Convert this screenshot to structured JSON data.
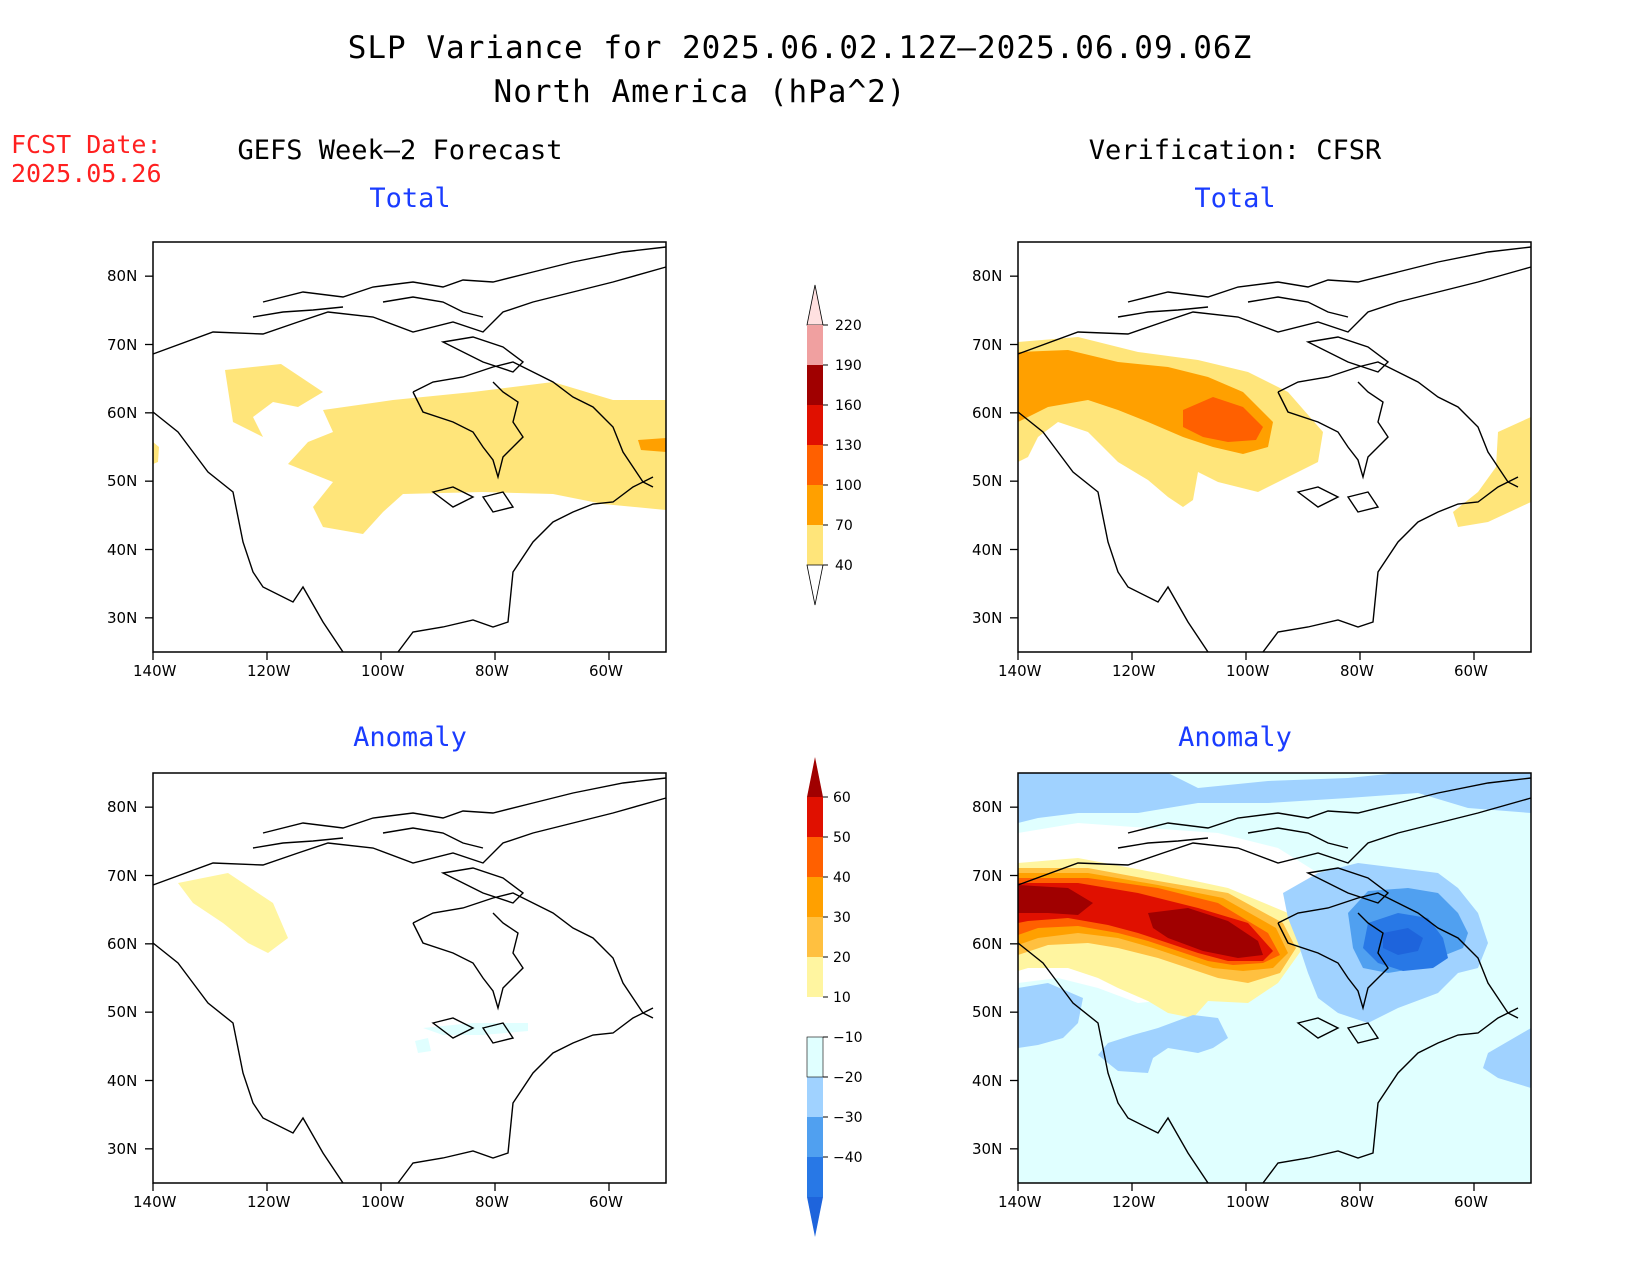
{
  "title": {
    "line1": "SLP Variance for 2025.06.02.12Z–2025.06.09.06Z",
    "line2": "North America (hPa^2)"
  },
  "fcst": {
    "label": "FCST Date:",
    "date": "2025.05.26"
  },
  "columns": {
    "left": "GEFS Week–2 Forecast",
    "right": "Verification: CFSR"
  },
  "panels": [
    {
      "id": "gefs-total",
      "subtitle": "Total"
    },
    {
      "id": "cfsr-total",
      "subtitle": "Total"
    },
    {
      "id": "gefs-anomaly",
      "subtitle": "Anomaly"
    },
    {
      "id": "cfsr-anomaly",
      "subtitle": "Anomaly"
    }
  ],
  "axes": {
    "lat_ticks": [
      "80N",
      "70N",
      "60N",
      "50N",
      "40N",
      "30N"
    ],
    "lon_ticks": [
      "140W",
      "120W",
      "100W",
      "80W",
      "60W"
    ],
    "lat_values": [
      80,
      70,
      60,
      50,
      40,
      30
    ],
    "lon_values": [
      -140,
      -120,
      -100,
      -80,
      -60
    ],
    "lat_range": [
      25,
      85
    ],
    "lon_range": [
      -140,
      -50
    ]
  },
  "colorbars": {
    "total": {
      "levels": [
        "40",
        "70",
        "100",
        "130",
        "160",
        "190",
        "220"
      ],
      "colors": [
        "#ffe57a",
        "#ffa000",
        "#ff6000",
        "#e01000",
        "#a00000",
        "#f0a0a0",
        "#ffe0e0"
      ]
    },
    "anomaly": {
      "levels": [
        "60",
        "50",
        "40",
        "30",
        "20",
        "10",
        "−10",
        "−20",
        "−30",
        "−40"
      ],
      "colors": [
        "#a00000",
        "#e01000",
        "#ff6000",
        "#ffa000",
        "#ffc040",
        "#fff5a0",
        "#ffffff",
        "#e0ffff",
        "#a0d2ff",
        "#50a0f0",
        "#2878e6",
        "#1e64dc"
      ]
    }
  }
}
